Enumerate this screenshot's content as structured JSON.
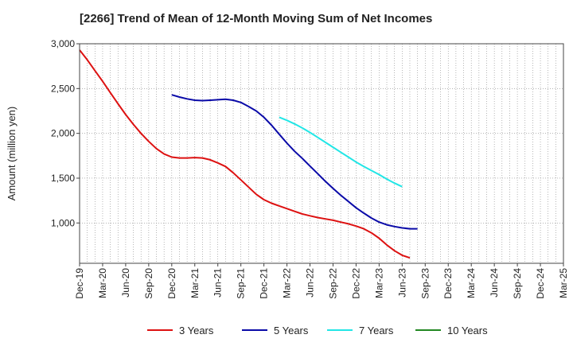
{
  "chart_data": {
    "type": "line",
    "title": "[2266]  Trend of Mean of 12-Month Moving Sum of Net Incomes",
    "xlabel": "",
    "ylabel": "Amount (million yen)",
    "ylim": [
      550,
      3000
    ],
    "yticks": [
      1000,
      1500,
      2000,
      2500,
      3000
    ],
    "ytick_labels": [
      "1,000",
      "1,500",
      "2,000",
      "2,500",
      "3,000"
    ],
    "x_ticks": [
      "Dec-19",
      "Mar-20",
      "Jun-20",
      "Sep-20",
      "Dec-20",
      "Mar-21",
      "Jun-21",
      "Sep-21",
      "Dec-21",
      "Mar-22",
      "Jun-22",
      "Sep-22",
      "Dec-22",
      "Mar-23",
      "Jun-23",
      "Sep-23",
      "Dec-23",
      "Mar-24",
      "Jun-24",
      "Sep-24",
      "Dec-24",
      "Mar-25"
    ],
    "grid": true,
    "legend_position": "bottom",
    "series": [
      {
        "name": "3 Years",
        "color": "#dd1111",
        "points": [
          [
            0,
            2930
          ],
          [
            1,
            2820
          ],
          [
            2,
            2700
          ],
          [
            3,
            2580
          ],
          [
            4,
            2455
          ],
          [
            5,
            2330
          ],
          [
            6,
            2210
          ],
          [
            7,
            2100
          ],
          [
            8,
            2000
          ],
          [
            9,
            1910
          ],
          [
            10,
            1830
          ],
          [
            11,
            1770
          ],
          [
            12,
            1735
          ],
          [
            13,
            1725
          ],
          [
            14,
            1725
          ],
          [
            15,
            1730
          ],
          [
            16,
            1725
          ],
          [
            17,
            1705
          ],
          [
            18,
            1670
          ],
          [
            19,
            1630
          ],
          [
            20,
            1560
          ],
          [
            21,
            1480
          ],
          [
            22,
            1400
          ],
          [
            23,
            1320
          ],
          [
            24,
            1260
          ],
          [
            25,
            1220
          ],
          [
            26,
            1190
          ],
          [
            27,
            1160
          ],
          [
            28,
            1130
          ],
          [
            29,
            1100
          ],
          [
            30,
            1080
          ],
          [
            31,
            1060
          ],
          [
            32,
            1045
          ],
          [
            33,
            1030
          ],
          [
            34,
            1010
          ],
          [
            35,
            990
          ],
          [
            36,
            965
          ],
          [
            37,
            935
          ],
          [
            38,
            890
          ],
          [
            39,
            830
          ],
          [
            40,
            755
          ],
          [
            41,
            690
          ],
          [
            42,
            640
          ],
          [
            43,
            610
          ]
        ]
      },
      {
        "name": "5 Years",
        "color": "#0a0aa8",
        "points": [
          [
            12,
            2430
          ],
          [
            13,
            2405
          ],
          [
            14,
            2385
          ],
          [
            15,
            2370
          ],
          [
            16,
            2365
          ],
          [
            17,
            2370
          ],
          [
            18,
            2375
          ],
          [
            19,
            2380
          ],
          [
            20,
            2370
          ],
          [
            21,
            2345
          ],
          [
            22,
            2300
          ],
          [
            23,
            2250
          ],
          [
            24,
            2180
          ],
          [
            25,
            2090
          ],
          [
            26,
            1990
          ],
          [
            27,
            1890
          ],
          [
            28,
            1800
          ],
          [
            29,
            1720
          ],
          [
            30,
            1635
          ],
          [
            31,
            1550
          ],
          [
            32,
            1465
          ],
          [
            33,
            1385
          ],
          [
            34,
            1310
          ],
          [
            35,
            1240
          ],
          [
            36,
            1170
          ],
          [
            37,
            1110
          ],
          [
            38,
            1055
          ],
          [
            39,
            1010
          ],
          [
            40,
            980
          ],
          [
            41,
            960
          ],
          [
            42,
            945
          ],
          [
            43,
            935
          ],
          [
            44,
            935
          ]
        ]
      },
      {
        "name": "7 Years",
        "color": "#22e6e6",
        "points": [
          [
            26,
            2180
          ],
          [
            27,
            2145
          ],
          [
            28,
            2105
          ],
          [
            29,
            2060
          ],
          [
            30,
            2010
          ],
          [
            31,
            1955
          ],
          [
            32,
            1900
          ],
          [
            33,
            1845
          ],
          [
            34,
            1790
          ],
          [
            35,
            1735
          ],
          [
            36,
            1680
          ],
          [
            37,
            1630
          ],
          [
            38,
            1585
          ],
          [
            39,
            1540
          ],
          [
            40,
            1490
          ],
          [
            41,
            1445
          ],
          [
            42,
            1405
          ]
        ]
      },
      {
        "name": "10 Years",
        "color": "#228822",
        "points": []
      }
    ]
  }
}
